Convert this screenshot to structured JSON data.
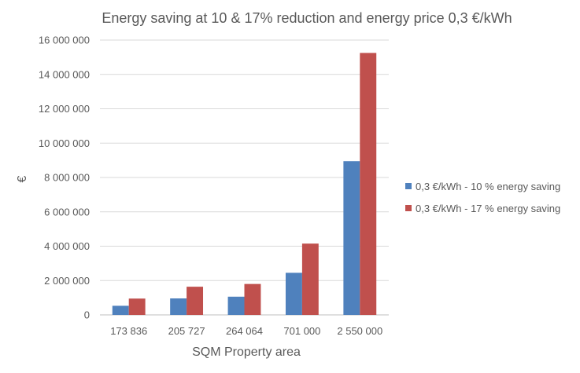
{
  "chart_data": {
    "type": "bar",
    "title": "Energy saving at 10 & 17% reduction and energy price 0,3 €/kWh",
    "xlabel": "SQM Property area",
    "ylabel": "€",
    "categories": [
      "173 836",
      "205 727",
      "264 064",
      "701 000",
      "2 550 000"
    ],
    "series": [
      {
        "name": "0,3 €/kWh - 10 % energy saving",
        "color": "#4f81bd",
        "values": [
          530000,
          960000,
          1060000,
          2450000,
          8950000
        ]
      },
      {
        "name": "0,3 €/kWh - 17 % energy saving",
        "color": "#c0504d",
        "values": [
          950000,
          1640000,
          1800000,
          4150000,
          15250000
        ]
      }
    ],
    "ylim": [
      0,
      16000000
    ],
    "ytick_step": 2000000,
    "yticks": [
      "0",
      "2 000 000",
      "4 000 000",
      "6 000 000",
      "8 000 000",
      "10 000 000",
      "12 000 000",
      "14 000 000",
      "16 000 000"
    ],
    "grid": true,
    "legend": "right"
  }
}
